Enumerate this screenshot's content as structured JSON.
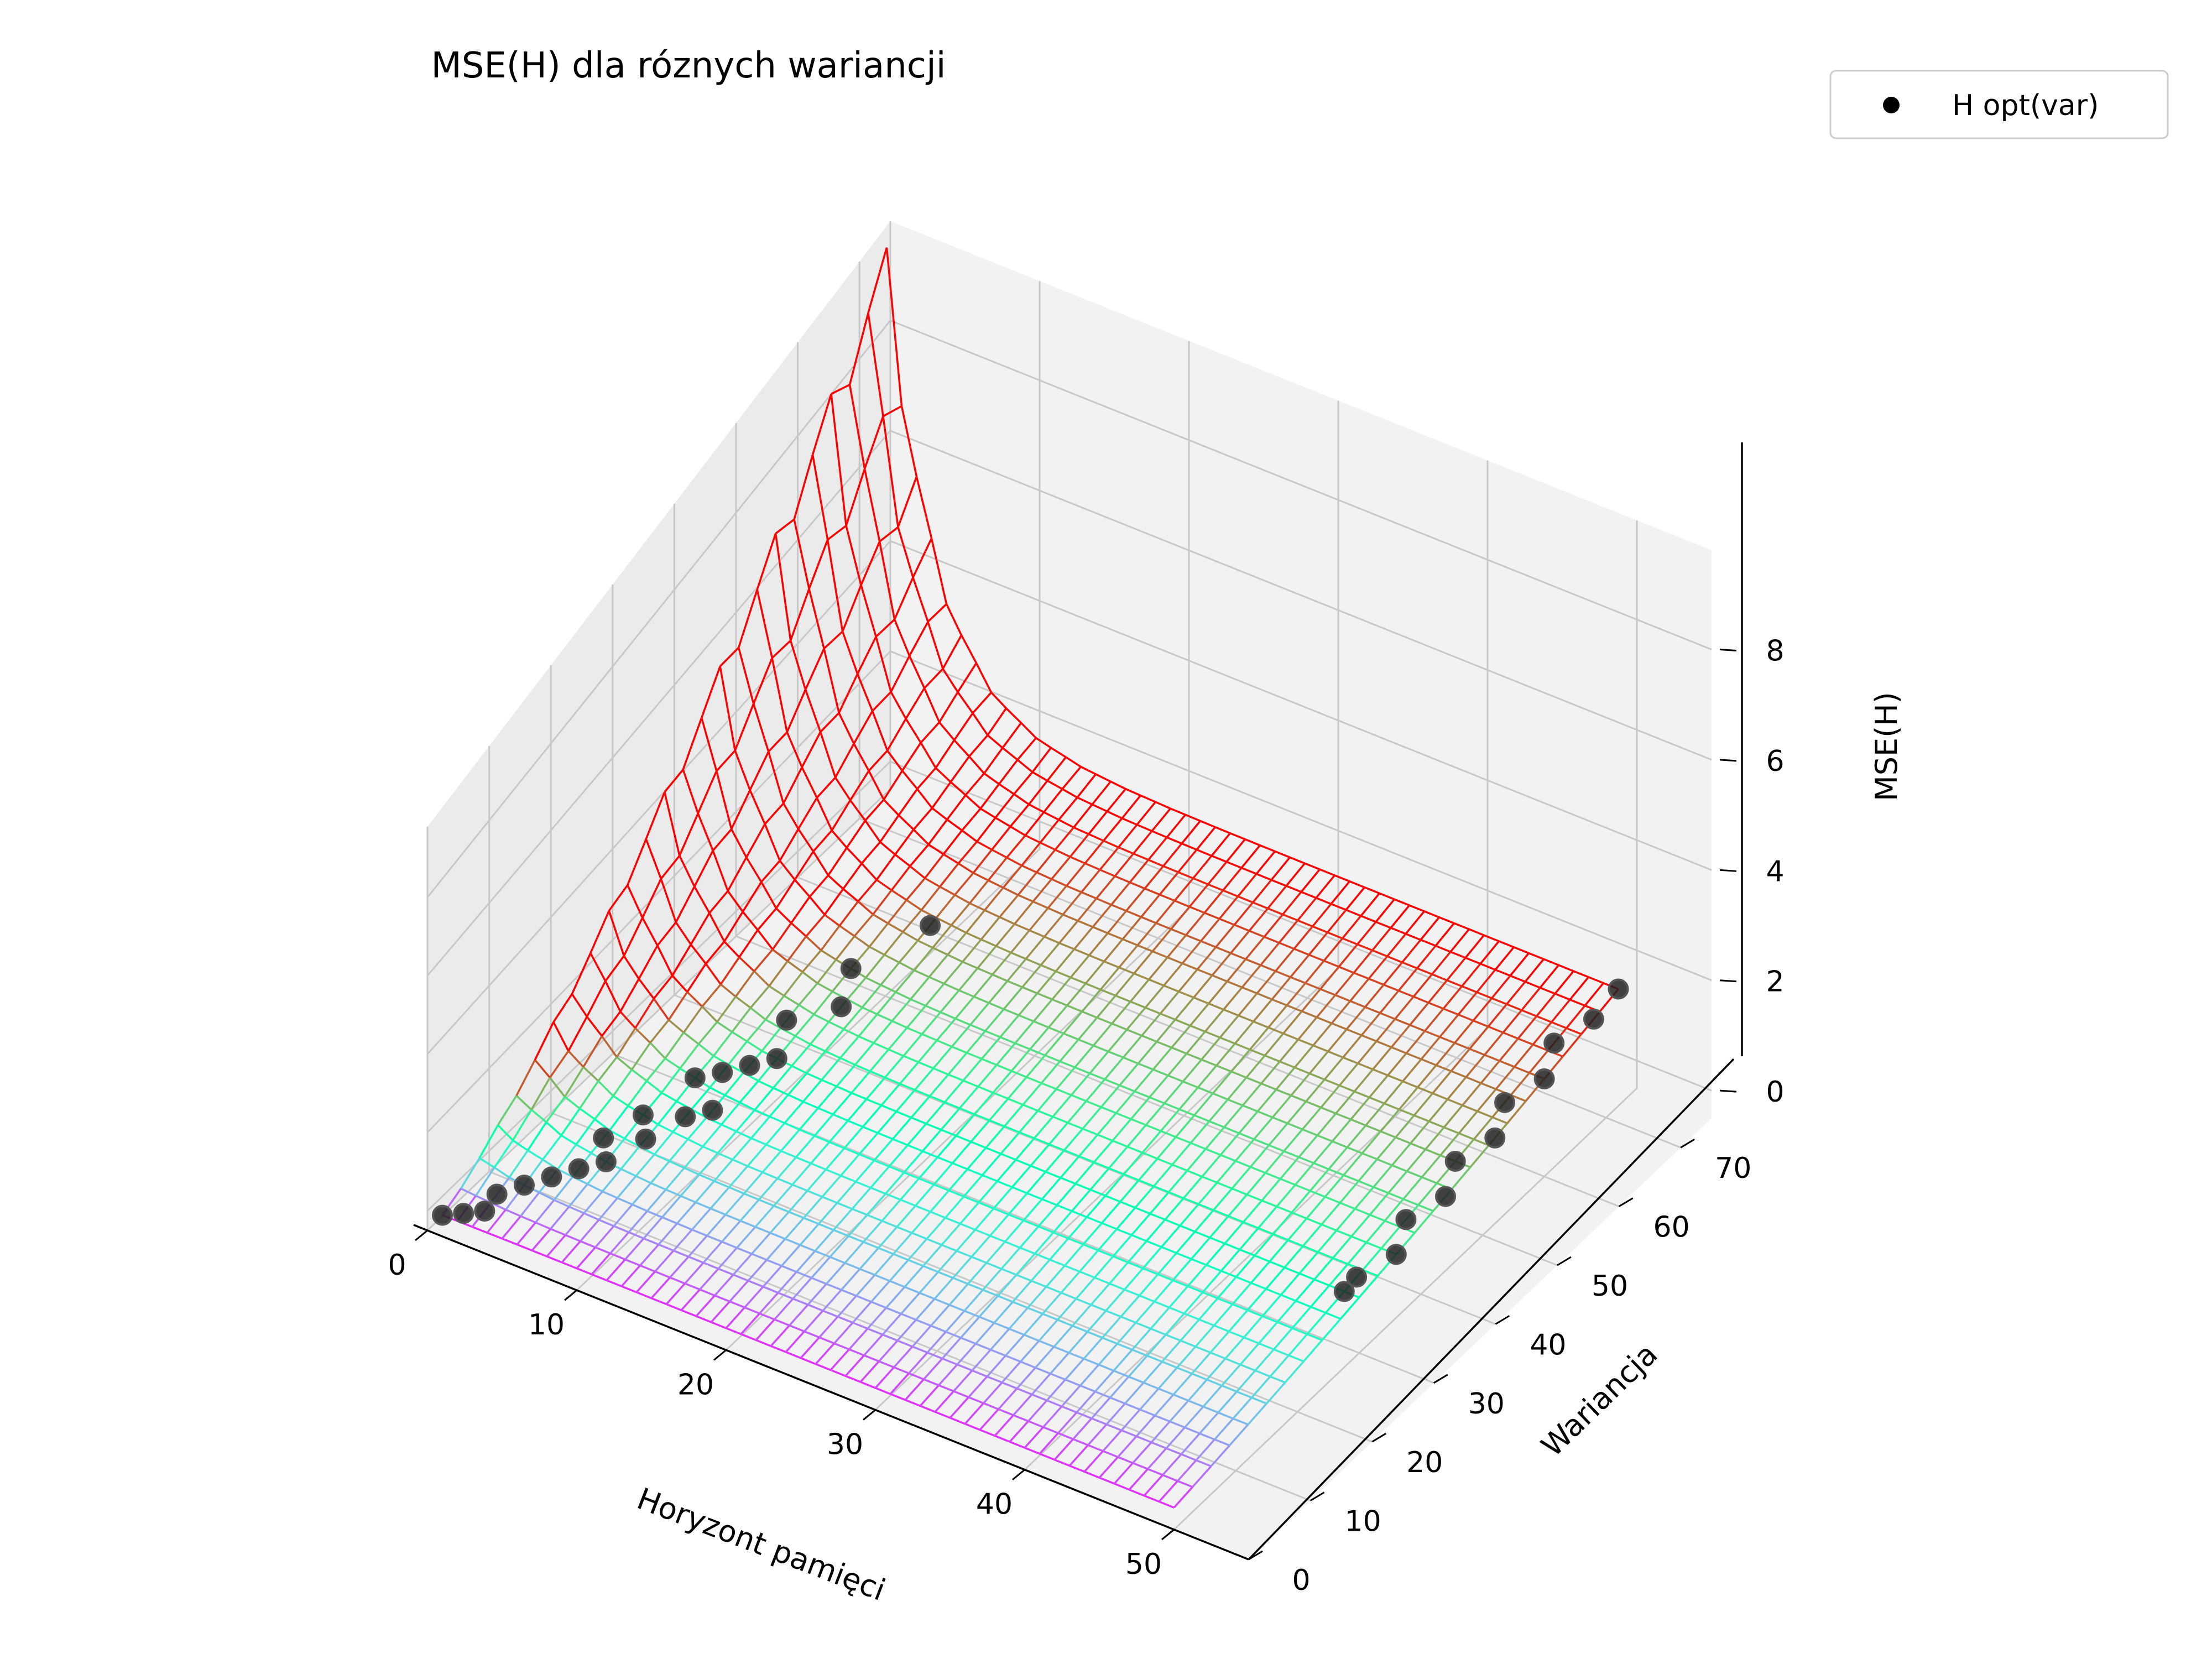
{
  "chart_data": {
    "type": "surface3d",
    "title": "MSE(H) dla róznych wariancji",
    "xlabel": "Horyzont pamięci",
    "ylabel": "Wariancja",
    "zlabel": "MSE(H)",
    "xlim": [
      0,
      55
    ],
    "ylim": [
      0,
      75
    ],
    "zlim": [
      -0.5,
      9.8
    ],
    "xticks": [
      "0",
      "10",
      "20",
      "30",
      "40",
      "50"
    ],
    "yticks": [
      "0",
      "10",
      "20",
      "30",
      "40",
      "50",
      "60",
      "70"
    ],
    "zticks": [
      "0",
      "2",
      "4",
      "6",
      "8"
    ],
    "colormap": "rainbow",
    "legend": {
      "label": "H opt(var)",
      "marker_color": "#000000",
      "position": "upper right"
    },
    "grid": true,
    "surface": {
      "style": "wireframe",
      "H_range": [
        1,
        50
      ],
      "variance_range": [
        0,
        72
      ],
      "mse_max_at_H1_var72": 9.5,
      "mse_min_at_H1_var0": 0.02
    },
    "h_opt_points": [
      {
        "var": 0,
        "H": 1
      },
      {
        "var": 1,
        "H": 2
      },
      {
        "var": 2,
        "H": 3
      },
      {
        "var": 4,
        "H": 3
      },
      {
        "var": 6,
        "H": 4
      },
      {
        "var": 8,
        "H": 5
      },
      {
        "var": 10,
        "H": 6
      },
      {
        "var": 12,
        "H": 7
      },
      {
        "var": 14,
        "H": 6
      },
      {
        "var": 16,
        "H": 8
      },
      {
        "var": 18,
        "H": 7
      },
      {
        "var": 20,
        "H": 9
      },
      {
        "var": 22,
        "H": 10
      },
      {
        "var": 24,
        "H": 8
      },
      {
        "var": 26,
        "H": 9
      },
      {
        "var": 28,
        "H": 10
      },
      {
        "var": 30,
        "H": 11
      },
      {
        "var": 34,
        "H": 10
      },
      {
        "var": 38,
        "H": 12
      },
      {
        "var": 42,
        "H": 11
      },
      {
        "var": 50,
        "H": 13
      },
      {
        "var": 30,
        "H": 49
      },
      {
        "var": 32,
        "H": 49
      },
      {
        "var": 36,
        "H": 50
      },
      {
        "var": 40,
        "H": 49
      },
      {
        "var": 44,
        "H": 50
      },
      {
        "var": 48,
        "H": 49
      },
      {
        "var": 52,
        "H": 50
      },
      {
        "var": 56,
        "H": 49
      },
      {
        "var": 60,
        "H": 50
      },
      {
        "var": 64,
        "H": 49
      },
      {
        "var": 68,
        "H": 50
      },
      {
        "var": 72,
        "H": 50
      }
    ]
  }
}
